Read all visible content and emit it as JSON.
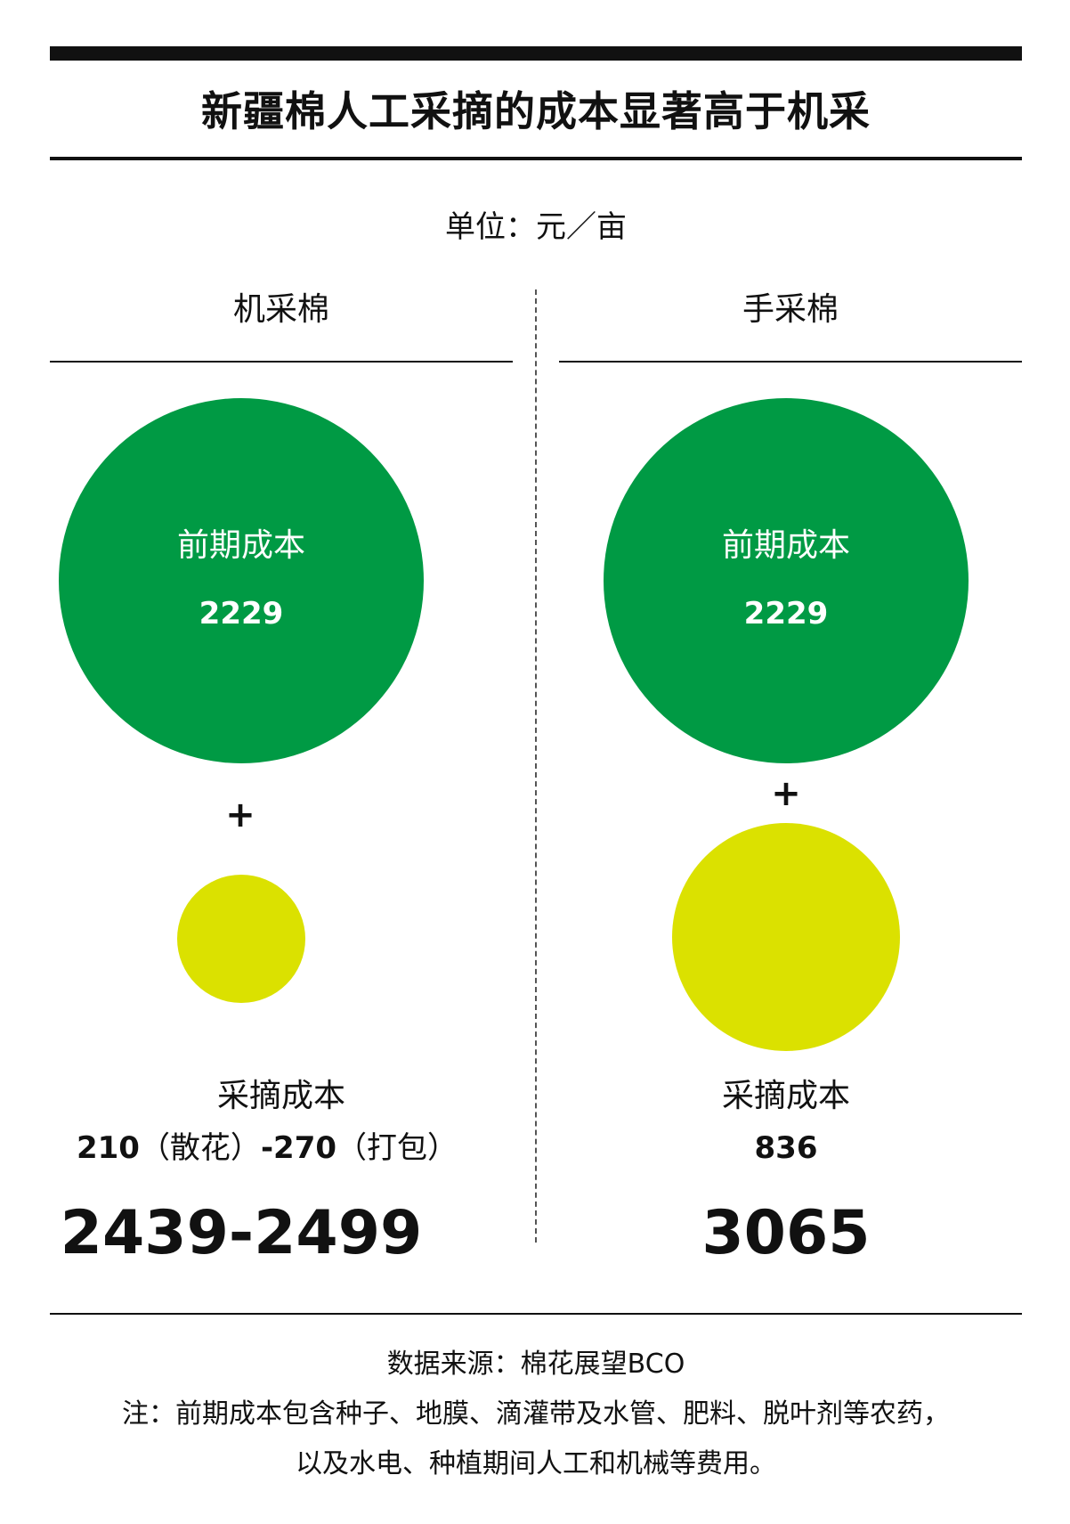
{
  "title": "新疆棉人工采摘的成本显著高于机采",
  "unit": "单位：元／亩",
  "columns": [
    {
      "header": "机采棉",
      "circle1_label": "前期成本",
      "circle1_value": "2229",
      "plus": "+",
      "pick_label": "采摘成本",
      "pick_value_a": "210",
      "pick_note_a": "（散花）",
      "pick_value_b": "-270",
      "pick_note_b": "（打包）",
      "total": "2439-2499"
    },
    {
      "header": "手采棉",
      "circle1_label": "前期成本",
      "circle1_value": "2229",
      "plus": "+",
      "pick_label": "采摘成本",
      "pick_value": "836",
      "total": "3065"
    }
  ],
  "source": "数据来源：棉花展望BCO",
  "note_line1": "注：前期成本包含种子、地膜、滴灌带及水管、肥料、脱叶剂等农药，",
  "note_line2": "以及水电、种植期间人工和机械等费用。",
  "colors": {
    "green": "#009a44",
    "yellow": "#dbe100",
    "black": "#111111"
  },
  "chart_data": {
    "type": "bubble",
    "title": "新疆棉人工采摘的成本显著高于机采",
    "unit": "元／亩",
    "categories": [
      "机采棉",
      "手采棉"
    ],
    "series": [
      {
        "name": "前期成本",
        "values": [
          2229,
          2229
        ]
      },
      {
        "name": "采摘成本",
        "values": [
          [
            210,
            270
          ],
          836
        ]
      }
    ],
    "totals": [
      [
        2439,
        2499
      ],
      3065
    ]
  }
}
